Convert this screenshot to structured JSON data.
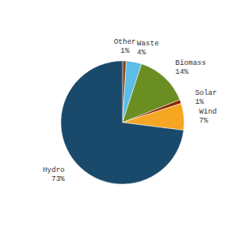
{
  "chart_data": {
    "type": "pie",
    "categories": [
      "Other",
      "Waste",
      "Biomass",
      "Solar",
      "Wind",
      "Hydro"
    ],
    "values": [
      1,
      4,
      14,
      1,
      7,
      73
    ],
    "value_labels": [
      "1%",
      "4%",
      "14%",
      "1%",
      "7%",
      "73%"
    ],
    "colors": [
      "#8b4513",
      "#5bbde8",
      "#6b8e23",
      "#8b2500",
      "#f5a623",
      "#1a4a6b"
    ],
    "data_labels": true
  }
}
